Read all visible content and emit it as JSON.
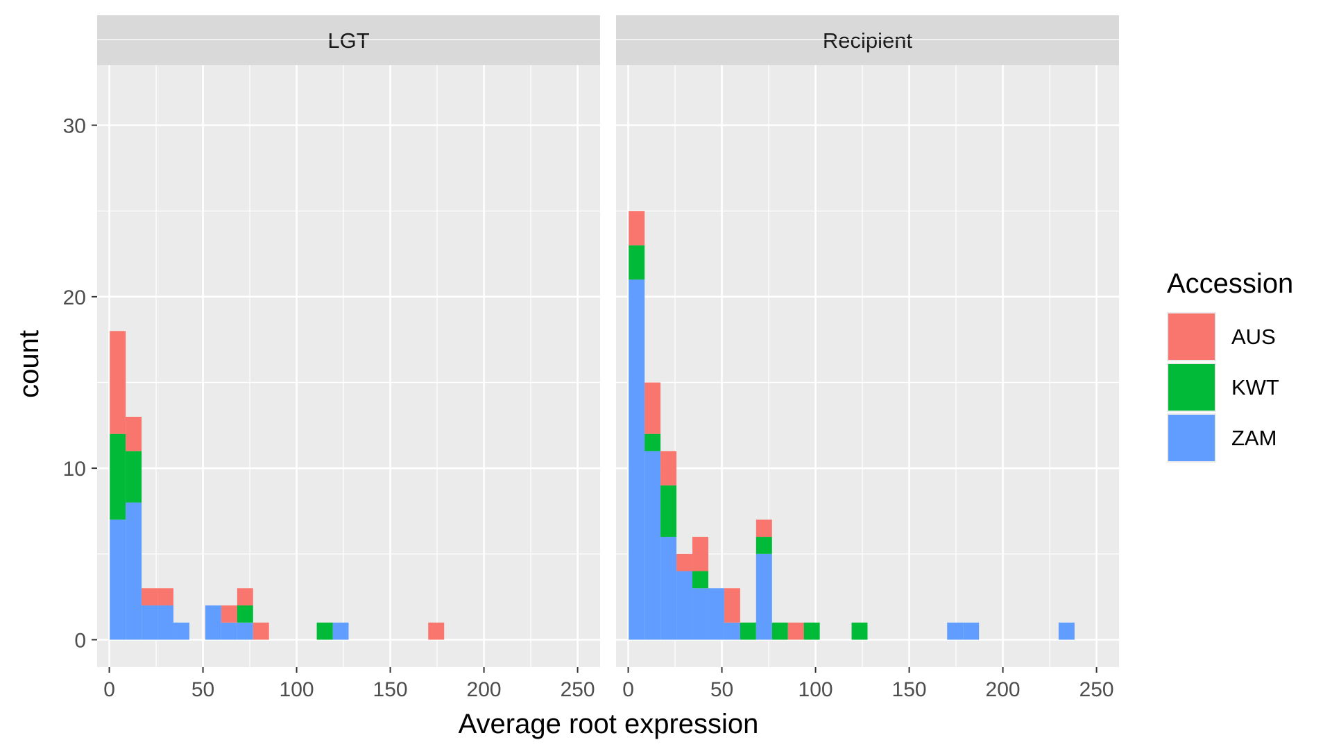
{
  "chart_data": {
    "type": "bar",
    "subtype": "stacked-histogram-faceted",
    "xlabel": "Average root expression",
    "ylabel": "count",
    "xlim": [
      -6.5,
      262
    ],
    "ylim": [
      -1.6,
      33.5
    ],
    "x_ticks": [
      "0",
      "50",
      "100",
      "150",
      "200",
      "250"
    ],
    "y_ticks": [
      "0",
      "10",
      "20",
      "30"
    ],
    "grid": true,
    "legend": {
      "title": "Accession",
      "position": "right",
      "entries": [
        {
          "name": "AUS",
          "color": "#F8766D"
        },
        {
          "name": "KWT",
          "color": "#00BA38"
        },
        {
          "name": "ZAM",
          "color": "#619CFF"
        }
      ]
    },
    "bin_width": 8.5,
    "stack_order": [
      "ZAM",
      "KWT",
      "AUS"
    ],
    "facets": [
      {
        "label": "LGT",
        "bins": [
          {
            "x": 4.5,
            "ZAM": 7,
            "KWT": 5,
            "AUS": 6
          },
          {
            "x": 13,
            "ZAM": 8,
            "KWT": 3,
            "AUS": 2
          },
          {
            "x": 21.5,
            "ZAM": 2,
            "KWT": 0,
            "AUS": 1
          },
          {
            "x": 30,
            "ZAM": 2,
            "KWT": 0,
            "AUS": 1
          },
          {
            "x": 38.5,
            "ZAM": 1,
            "KWT": 0,
            "AUS": 0
          },
          {
            "x": 55.5,
            "ZAM": 2,
            "KWT": 0,
            "AUS": 0
          },
          {
            "x": 64,
            "ZAM": 1,
            "KWT": 0,
            "AUS": 1
          },
          {
            "x": 72.5,
            "ZAM": 1,
            "KWT": 1,
            "AUS": 1
          },
          {
            "x": 81,
            "ZAM": 0,
            "KWT": 0,
            "AUS": 1
          },
          {
            "x": 115,
            "ZAM": 0,
            "KWT": 1,
            "AUS": 0
          },
          {
            "x": 123.5,
            "ZAM": 1,
            "KWT": 0,
            "AUS": 0
          },
          {
            "x": 174.5,
            "ZAM": 0,
            "KWT": 0,
            "AUS": 1
          }
        ]
      },
      {
        "label": "Recipient",
        "bins": [
          {
            "x": 4.5,
            "ZAM": 21,
            "KWT": 2,
            "AUS": 2
          },
          {
            "x": 13,
            "ZAM": 11,
            "KWT": 1,
            "AUS": 3
          },
          {
            "x": 21.5,
            "ZAM": 6,
            "KWT": 3,
            "AUS": 2
          },
          {
            "x": 30,
            "ZAM": 4,
            "KWT": 0,
            "AUS": 1
          },
          {
            "x": 38.5,
            "ZAM": 3,
            "KWT": 1,
            "AUS": 2
          },
          {
            "x": 47,
            "ZAM": 3,
            "KWT": 0,
            "AUS": 0
          },
          {
            "x": 55.5,
            "ZAM": 1,
            "KWT": 0,
            "AUS": 2
          },
          {
            "x": 64,
            "ZAM": 0,
            "KWT": 1,
            "AUS": 0
          },
          {
            "x": 72.5,
            "ZAM": 5,
            "KWT": 1,
            "AUS": 1
          },
          {
            "x": 81,
            "ZAM": 0,
            "KWT": 1,
            "AUS": 0
          },
          {
            "x": 89.5,
            "ZAM": 0,
            "KWT": 0,
            "AUS": 1
          },
          {
            "x": 98,
            "ZAM": 0,
            "KWT": 1,
            "AUS": 0
          },
          {
            "x": 123.5,
            "ZAM": 0,
            "KWT": 1,
            "AUS": 0
          },
          {
            "x": 174.5,
            "ZAM": 1,
            "KWT": 0,
            "AUS": 0
          },
          {
            "x": 183,
            "ZAM": 1,
            "KWT": 0,
            "AUS": 0
          },
          {
            "x": 234,
            "ZAM": 1,
            "KWT": 0,
            "AUS": 0
          }
        ]
      }
    ]
  }
}
